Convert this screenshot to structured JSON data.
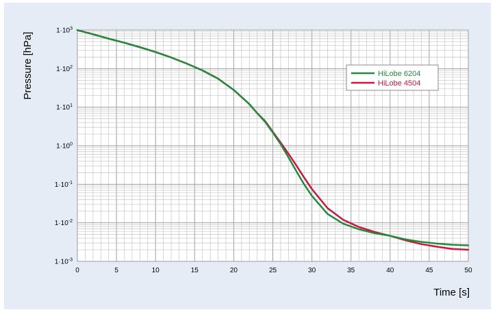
{
  "chart_data": {
    "type": "line",
    "title": "",
    "xlabel": "Time [s]",
    "ylabel": "Pressure [hPa]",
    "x_scale": "linear",
    "y_scale": "log",
    "xlim": [
      0,
      50
    ],
    "ylim": [
      0.001,
      1000
    ],
    "grid": true,
    "legend_position": "top-right",
    "x_ticks": [
      "0",
      "5",
      "10",
      "15",
      "20",
      "25",
      "30",
      "35",
      "40",
      "45",
      "50"
    ],
    "y_ticks": [
      {
        "value": 1000,
        "mantissa": "1·10",
        "exp": "3"
      },
      {
        "value": 100,
        "mantissa": "1·10",
        "exp": "2"
      },
      {
        "value": 10,
        "mantissa": "1·10",
        "exp": "1"
      },
      {
        "value": 1,
        "mantissa": "1·10",
        "exp": "0"
      },
      {
        "value": 0.1,
        "mantissa": "1·10",
        "exp": "-1"
      },
      {
        "value": 0.01,
        "mantissa": "1·10",
        "exp": "-2"
      },
      {
        "value": 0.001,
        "mantissa": "1·10",
        "exp": "-3"
      }
    ],
    "series": [
      {
        "name": "HiLobe 6204",
        "color": "#1e8c3c",
        "points": [
          [
            0,
            1000
          ],
          [
            2,
            780
          ],
          [
            4,
            600
          ],
          [
            6,
            470
          ],
          [
            8,
            360
          ],
          [
            10,
            270
          ],
          [
            12,
            195
          ],
          [
            14,
            135
          ],
          [
            16,
            90
          ],
          [
            18,
            55
          ],
          [
            20,
            28
          ],
          [
            22,
            12
          ],
          [
            23,
            7
          ],
          [
            24,
            4.2
          ],
          [
            25,
            2.2
          ],
          [
            26,
            1.1
          ],
          [
            27,
            0.5
          ],
          [
            28,
            0.22
          ],
          [
            29,
            0.1
          ],
          [
            30,
            0.05
          ],
          [
            32,
            0.017
          ],
          [
            34,
            0.0095
          ],
          [
            36,
            0.0068
          ],
          [
            38,
            0.0054
          ],
          [
            40,
            0.0046
          ],
          [
            42,
            0.0037
          ],
          [
            44,
            0.0032
          ],
          [
            46,
            0.0029
          ],
          [
            48,
            0.0027
          ],
          [
            50,
            0.0026
          ]
        ]
      },
      {
        "name": "HiLobe 4504",
        "color": "#d1123f",
        "points": [
          [
            0,
            1000
          ],
          [
            2,
            780
          ],
          [
            4,
            600
          ],
          [
            6,
            470
          ],
          [
            8,
            360
          ],
          [
            10,
            270
          ],
          [
            12,
            195
          ],
          [
            14,
            135
          ],
          [
            16,
            90
          ],
          [
            18,
            55
          ],
          [
            20,
            28
          ],
          [
            22,
            12
          ],
          [
            23,
            7
          ],
          [
            24,
            4.4
          ],
          [
            25,
            2.3
          ],
          [
            26,
            1.2
          ],
          [
            27,
            0.62
          ],
          [
            28,
            0.31
          ],
          [
            29,
            0.15
          ],
          [
            30,
            0.075
          ],
          [
            32,
            0.024
          ],
          [
            34,
            0.012
          ],
          [
            36,
            0.0078
          ],
          [
            38,
            0.0058
          ],
          [
            40,
            0.0046
          ],
          [
            42,
            0.0035
          ],
          [
            44,
            0.0028
          ],
          [
            46,
            0.0024
          ],
          [
            48,
            0.0021
          ],
          [
            50,
            0.002
          ]
        ]
      }
    ]
  }
}
